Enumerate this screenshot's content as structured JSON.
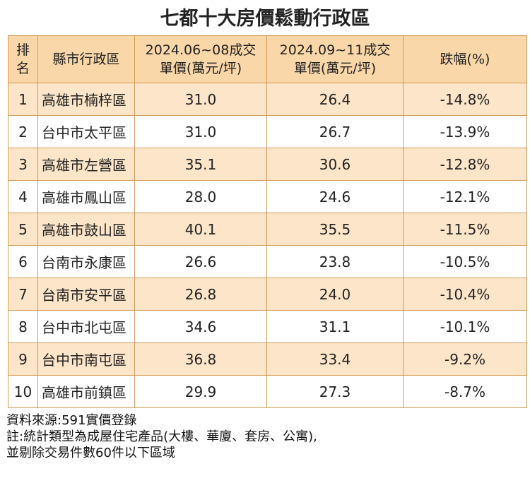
{
  "title": "七都十大房價鬆動行政區",
  "chart_data": {
    "type": "table",
    "headers": {
      "rank_line1": "排",
      "rank_line2": "名",
      "district": "縣市行政區",
      "period1_line1": "2024.06~08成交",
      "period1_line2": "單價(萬元/坪)",
      "period2_line1": "2024.09~11成交",
      "period2_line2": "單價(萬元/坪)",
      "change": "跌幅(%)"
    },
    "rows": [
      {
        "rank": "1",
        "district": "高雄市楠梓區",
        "p1": "31.0",
        "p2": "26.4",
        "change": "-14.8%"
      },
      {
        "rank": "2",
        "district": "台中市太平區",
        "p1": "31.0",
        "p2": "26.7",
        "change": "-13.9%"
      },
      {
        "rank": "3",
        "district": "高雄市左營區",
        "p1": "35.1",
        "p2": "30.6",
        "change": "-12.8%"
      },
      {
        "rank": "4",
        "district": "高雄市鳳山區",
        "p1": "28.0",
        "p2": "24.6",
        "change": "-12.1%"
      },
      {
        "rank": "5",
        "district": "高雄市鼓山區",
        "p1": "40.1",
        "p2": "35.5",
        "change": "-11.5%"
      },
      {
        "rank": "6",
        "district": "台南市永康區",
        "p1": "26.6",
        "p2": "23.8",
        "change": "-10.5%"
      },
      {
        "rank": "7",
        "district": "台南市安平區",
        "p1": "26.8",
        "p2": "24.0",
        "change": "-10.4%"
      },
      {
        "rank": "8",
        "district": "台中市北屯區",
        "p1": "34.6",
        "p2": "31.1",
        "change": "-10.1%"
      },
      {
        "rank": "9",
        "district": "台中市南屯區",
        "p1": "36.8",
        "p2": "33.4",
        "change": "-9.2%"
      },
      {
        "rank": "10",
        "district": "高雄市前鎮區",
        "p1": "29.9",
        "p2": "27.3",
        "change": "-8.7%"
      }
    ]
  },
  "footer": {
    "source": "資料來源:591實價登錄",
    "note1": "註:統計類型為成屋住宅產品(大樓、華廈、套房、公寓),",
    "note2": "並剔除交易件數60件以下區域"
  },
  "colors": {
    "header_bg": "#fad7a8",
    "shaded_row_bg": "#fce5c8",
    "border": "#d39a55"
  }
}
